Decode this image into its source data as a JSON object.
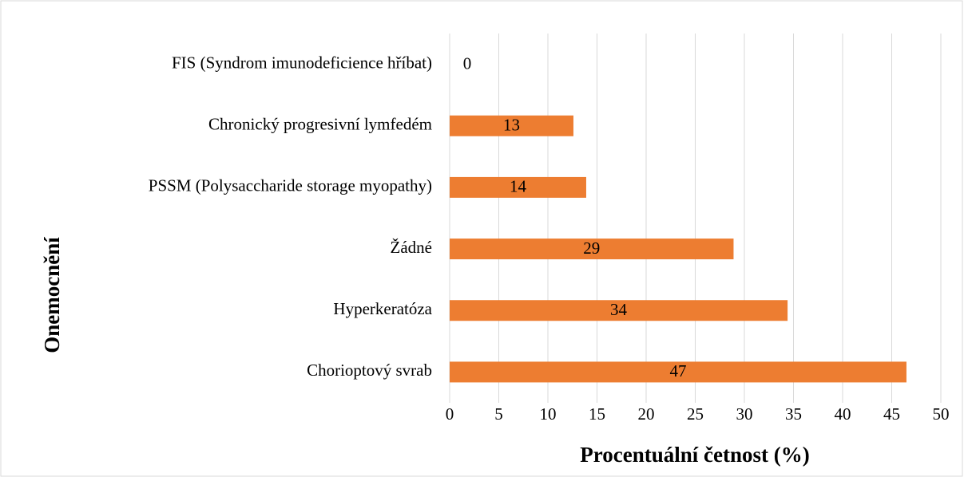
{
  "chart_data": {
    "type": "barh",
    "x_label": "Procentuální četnost (%)",
    "y_label": "Onemocnění",
    "categories": [
      "FIS (Syndrom imunodeficience hříbat)",
      "Chronický progresivní lymfedém",
      "PSSM (Polysaccharide storage myopathy)",
      "Žádné",
      "Hyperkeratóza",
      "Chorioptový svrab"
    ],
    "values": [
      0,
      12.6,
      13.9,
      28.9,
      34.4,
      46.5
    ],
    "value_labels": [
      "0",
      "13",
      "14",
      "29",
      "34",
      "47"
    ],
    "color": "#ed7d31",
    "xlim": [
      0,
      50
    ],
    "xticks": [
      0,
      5,
      10,
      15,
      20,
      25,
      30,
      35,
      40,
      45,
      50
    ],
    "grid": true
  }
}
